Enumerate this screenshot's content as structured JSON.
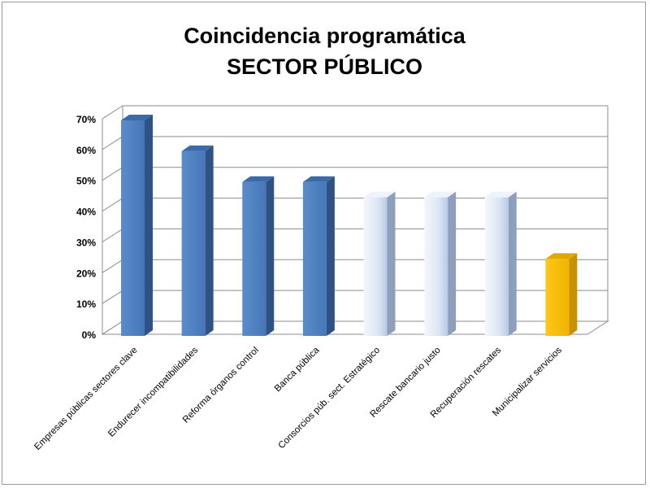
{
  "title": {
    "line1": "Coincidencia programática",
    "line2": "SECTOR PÚBLICO"
  },
  "chart_data": {
    "type": "bar",
    "style": "3d-column",
    "title": "Coincidencia programática SECTOR PÚBLICO",
    "xlabel": "",
    "ylabel": "",
    "ylim": [
      0,
      0.7
    ],
    "yticks": [
      "0%",
      "10%",
      "20%",
      "30%",
      "40%",
      "50%",
      "60%",
      "70%"
    ],
    "grid": true,
    "legend": "none",
    "categories": [
      "Empresas públicas sectores clave",
      "Endurecer incompatibilidades",
      "Reforma órganos control",
      "Banca pública",
      "Consorcios púb. sect. Estratégico",
      "Rescate bancario justo",
      "Recuperación rescates",
      "Municipalizar servicios"
    ],
    "values": [
      0.7,
      0.6,
      0.5,
      0.5,
      0.45,
      0.45,
      0.45,
      0.25
    ],
    "bar_colors": [
      "#4f81bd",
      "#4f81bd",
      "#4f81bd",
      "#4f81bd",
      "#dce6f5",
      "#dce6f5",
      "#dce6f5",
      "#ffc000"
    ]
  }
}
